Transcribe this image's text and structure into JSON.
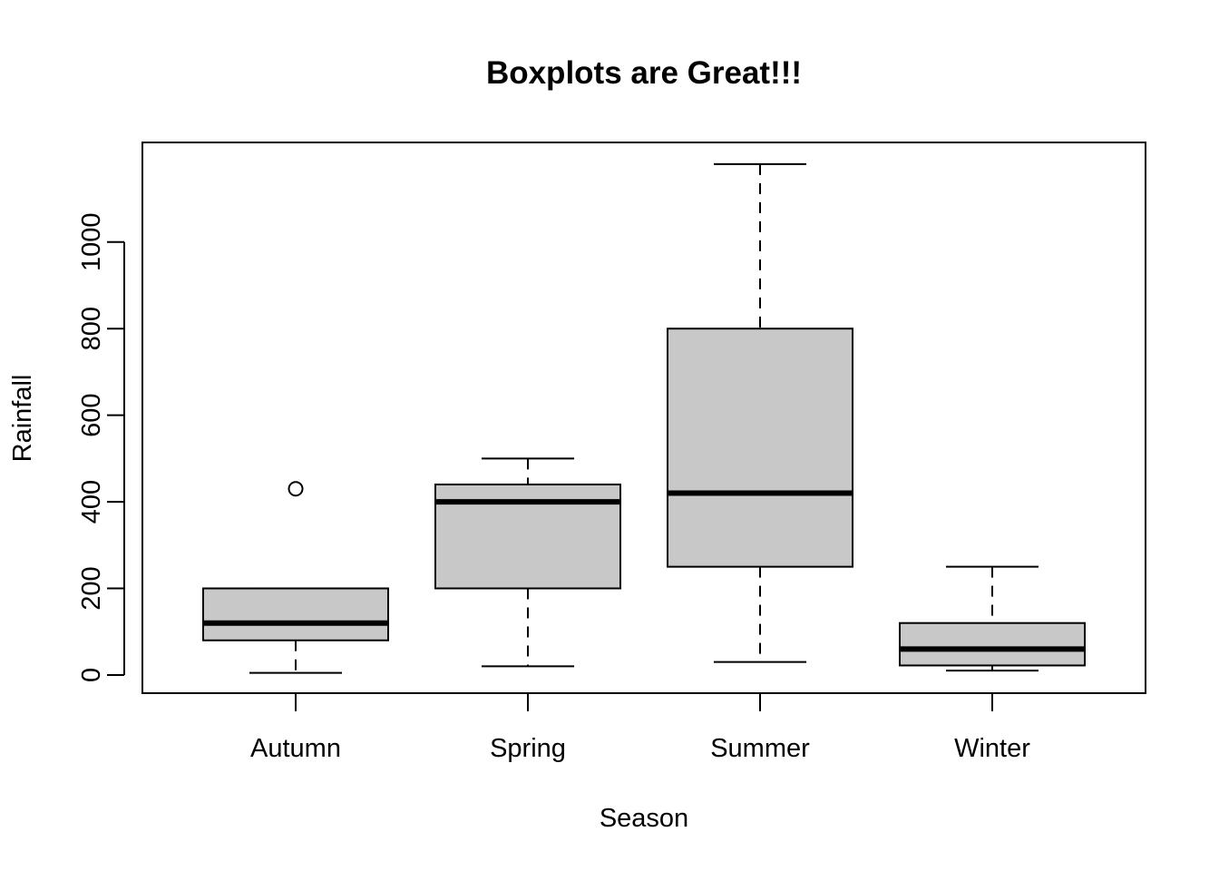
{
  "chart_data": {
    "type": "boxplot",
    "title": "Boxplots are Great!!!",
    "xlabel": "Season",
    "ylabel": "Rainfall",
    "categories": [
      "Autumn",
      "Spring",
      "Summer",
      "Winter"
    ],
    "yticks": [
      0,
      200,
      400,
      600,
      800,
      1000
    ],
    "ylim": [
      -42,
      1230
    ],
    "boxes": [
      {
        "category": "Autumn",
        "min": 5,
        "q1": 80,
        "median": 120,
        "q3": 200,
        "max": 200,
        "outliers": [
          430
        ]
      },
      {
        "category": "Spring",
        "min": 20,
        "q1": 200,
        "median": 400,
        "q3": 440,
        "max": 500,
        "outliers": []
      },
      {
        "category": "Summer",
        "min": 30,
        "q1": 250,
        "median": 420,
        "q3": 800,
        "max": 1180,
        "outliers": []
      },
      {
        "category": "Winter",
        "min": 10,
        "q1": 22,
        "median": 60,
        "q3": 120,
        "max": 250,
        "outliers": []
      }
    ],
    "box_fill": "#c8c8c8",
    "grid": false,
    "legend": "none"
  }
}
